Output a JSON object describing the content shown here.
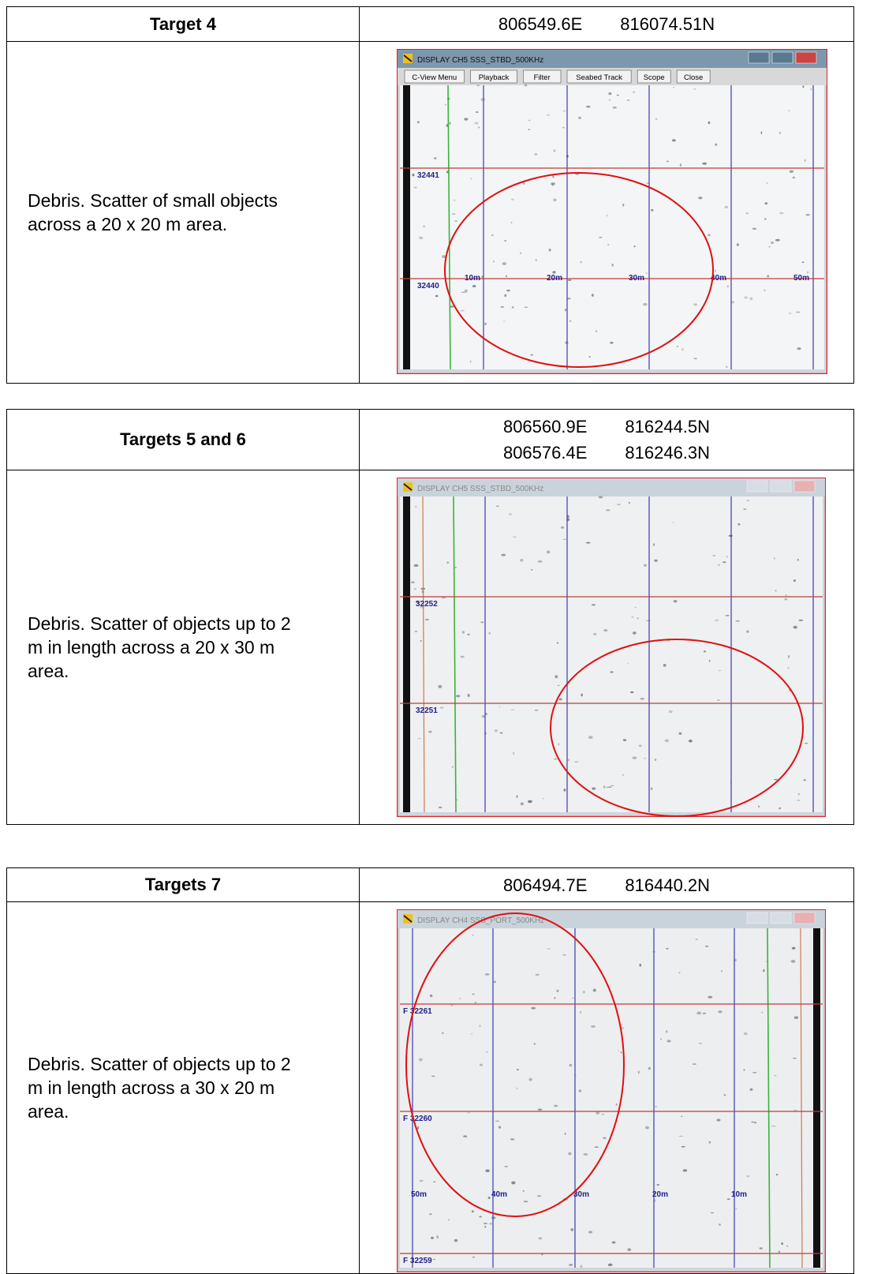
{
  "tables": [
    {
      "title": "Target 4",
      "coordinates": [
        [
          "806549.6E",
          "816074.51N"
        ]
      ],
      "description": [
        "Debris.  Scatter of small objects",
        "across a 20 x 20 m area."
      ],
      "screenshot": {
        "window_title": "DISPLAY CH5 SSS_STBD_500KHz",
        "buttons": [
          "C-View Menu",
          "Playback",
          "Filter",
          "Seabed Track",
          "Scope",
          "Close"
        ],
        "ping_labels": [
          "32441",
          "32440"
        ],
        "range_labels": [
          "10m",
          "20m",
          "30m",
          "40m",
          "50m"
        ]
      }
    },
    {
      "title": "Targets 5 and 6",
      "coordinates": [
        [
          "806560.9E",
          "816244.5N"
        ],
        [
          "806576.4E",
          "816246.3N"
        ]
      ],
      "description": [
        "Debris.  Scatter of objects up to 2",
        "m in length across a 20 x 30 m",
        "area."
      ],
      "screenshot": {
        "window_title": "DISPLAY CH5 SSS_STBD_500KHz",
        "ping_labels": [
          "32252",
          "32251"
        ]
      }
    },
    {
      "title": "Targets 7",
      "coordinates": [
        [
          "806494.7E",
          "816440.2N"
        ]
      ],
      "description": [
        "Debris.  Scatter of objects up to 2",
        "m in length across a 30 x 20 m",
        "area."
      ],
      "screenshot": {
        "window_title": "DISPLAY CH4 SSS_PORT_500KHz",
        "ping_labels": [
          "F 32261",
          "F 32260",
          "F 32259"
        ],
        "range_labels": [
          "50m",
          "40m",
          "30m",
          "20m",
          "10m"
        ]
      }
    }
  ]
}
